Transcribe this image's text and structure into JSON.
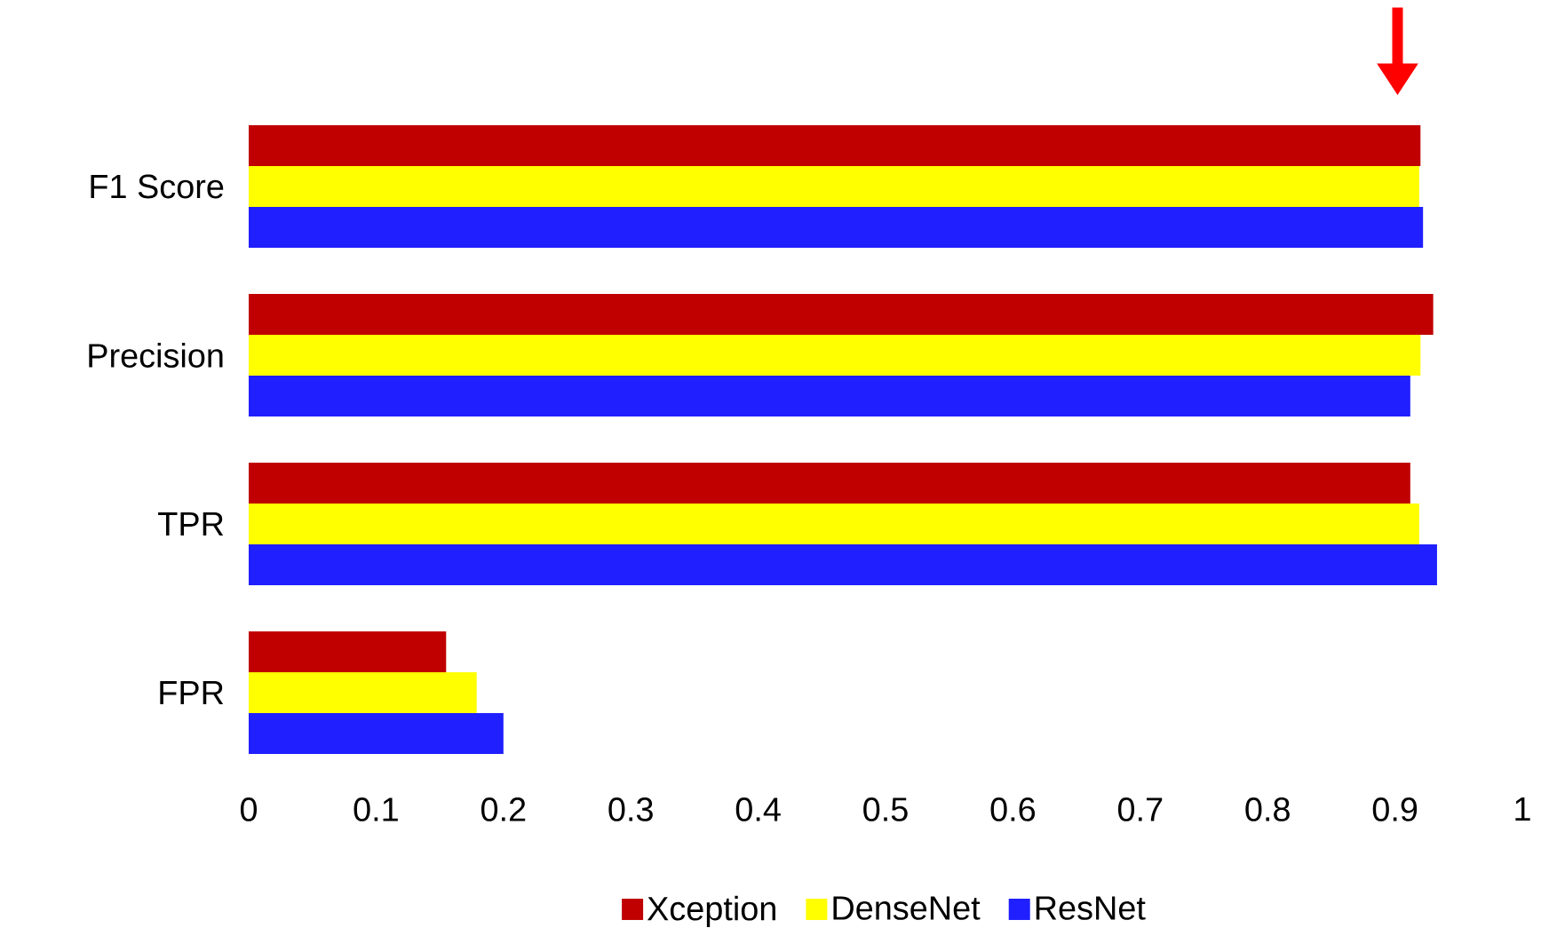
{
  "chart_data": {
    "type": "bar",
    "orientation": "horizontal",
    "categories": [
      "F1 Score",
      "Precision",
      "TPR",
      "FPR"
    ],
    "series": [
      {
        "name": "Xception",
        "color": "#c00000",
        "values": [
          0.92,
          0.93,
          0.912,
          0.155
        ]
      },
      {
        "name": "DenseNet",
        "color": "#ffff00",
        "values": [
          0.919,
          0.92,
          0.919,
          0.179
        ]
      },
      {
        "name": "ResNet",
        "color": "#1f1fff",
        "values": [
          0.922,
          0.912,
          0.933,
          0.2
        ]
      }
    ],
    "xlim": [
      0,
      1
    ],
    "xticks": [
      0,
      0.1,
      0.2,
      0.3,
      0.4,
      0.5,
      0.6,
      0.7,
      0.8,
      0.9,
      1
    ],
    "legend": "bottom"
  }
}
